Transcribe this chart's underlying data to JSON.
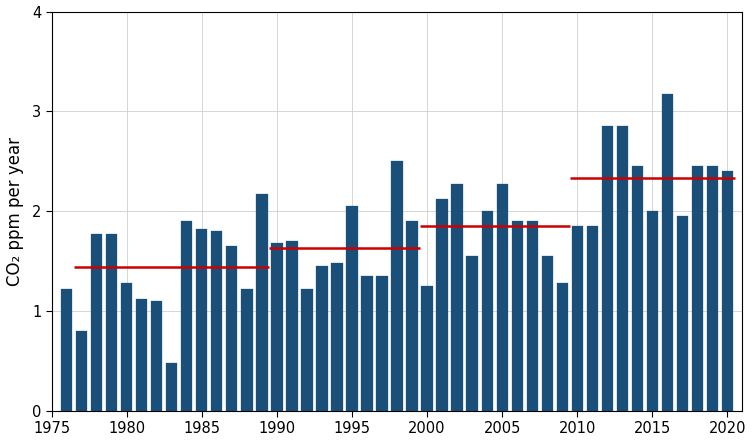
{
  "years": [
    1976,
    1977,
    1978,
    1979,
    1980,
    1981,
    1982,
    1983,
    1984,
    1985,
    1986,
    1987,
    1988,
    1989,
    1990,
    1991,
    1992,
    1993,
    1994,
    1995,
    1996,
    1997,
    1998,
    1999,
    2000,
    2001,
    2002,
    2003,
    2004,
    2005,
    2006,
    2007,
    2008,
    2009,
    2010,
    2011,
    2012,
    2013,
    2014,
    2015,
    2016,
    2017,
    2018,
    2019,
    2020
  ],
  "values": [
    1.22,
    0.8,
    1.77,
    1.77,
    1.28,
    1.12,
    1.1,
    0.48,
    1.9,
    1.82,
    1.8,
    1.65,
    1.22,
    2.17,
    1.68,
    1.7,
    1.22,
    1.45,
    1.48,
    2.05,
    1.35,
    1.35,
    2.5,
    1.9,
    1.25,
    2.12,
    2.27,
    1.55,
    2.0,
    2.27,
    1.9,
    1.9,
    1.55,
    1.28,
    1.85,
    1.85,
    2.85,
    2.85,
    2.45,
    2.0,
    3.17,
    1.95,
    2.45,
    2.45,
    2.4
  ],
  "decade_lines": [
    {
      "x_start": 1976.5,
      "x_end": 1989.5,
      "y": 1.44
    },
    {
      "x_start": 1989.5,
      "x_end": 1999.5,
      "y": 1.63
    },
    {
      "x_start": 1999.5,
      "x_end": 2009.5,
      "y": 1.85
    },
    {
      "x_start": 2009.5,
      "x_end": 2020.5,
      "y": 2.33
    }
  ],
  "bar_color": "#1a4f7a",
  "line_color": "#cc0000",
  "bar_width": 0.75,
  "xlim": [
    1975.0,
    2021.0
  ],
  "ylim": [
    0,
    4
  ],
  "yticks": [
    0,
    1,
    2,
    3,
    4
  ],
  "xticks": [
    1975,
    1980,
    1985,
    1990,
    1995,
    2000,
    2005,
    2010,
    2015,
    2020
  ],
  "ylabel": "CO₂ ppm per year",
  "grid_color": "#d0d0d0",
  "background_color": "#ffffff",
  "ylabel_fontsize": 12,
  "tick_fontsize": 10.5,
  "line_width": 1.8
}
